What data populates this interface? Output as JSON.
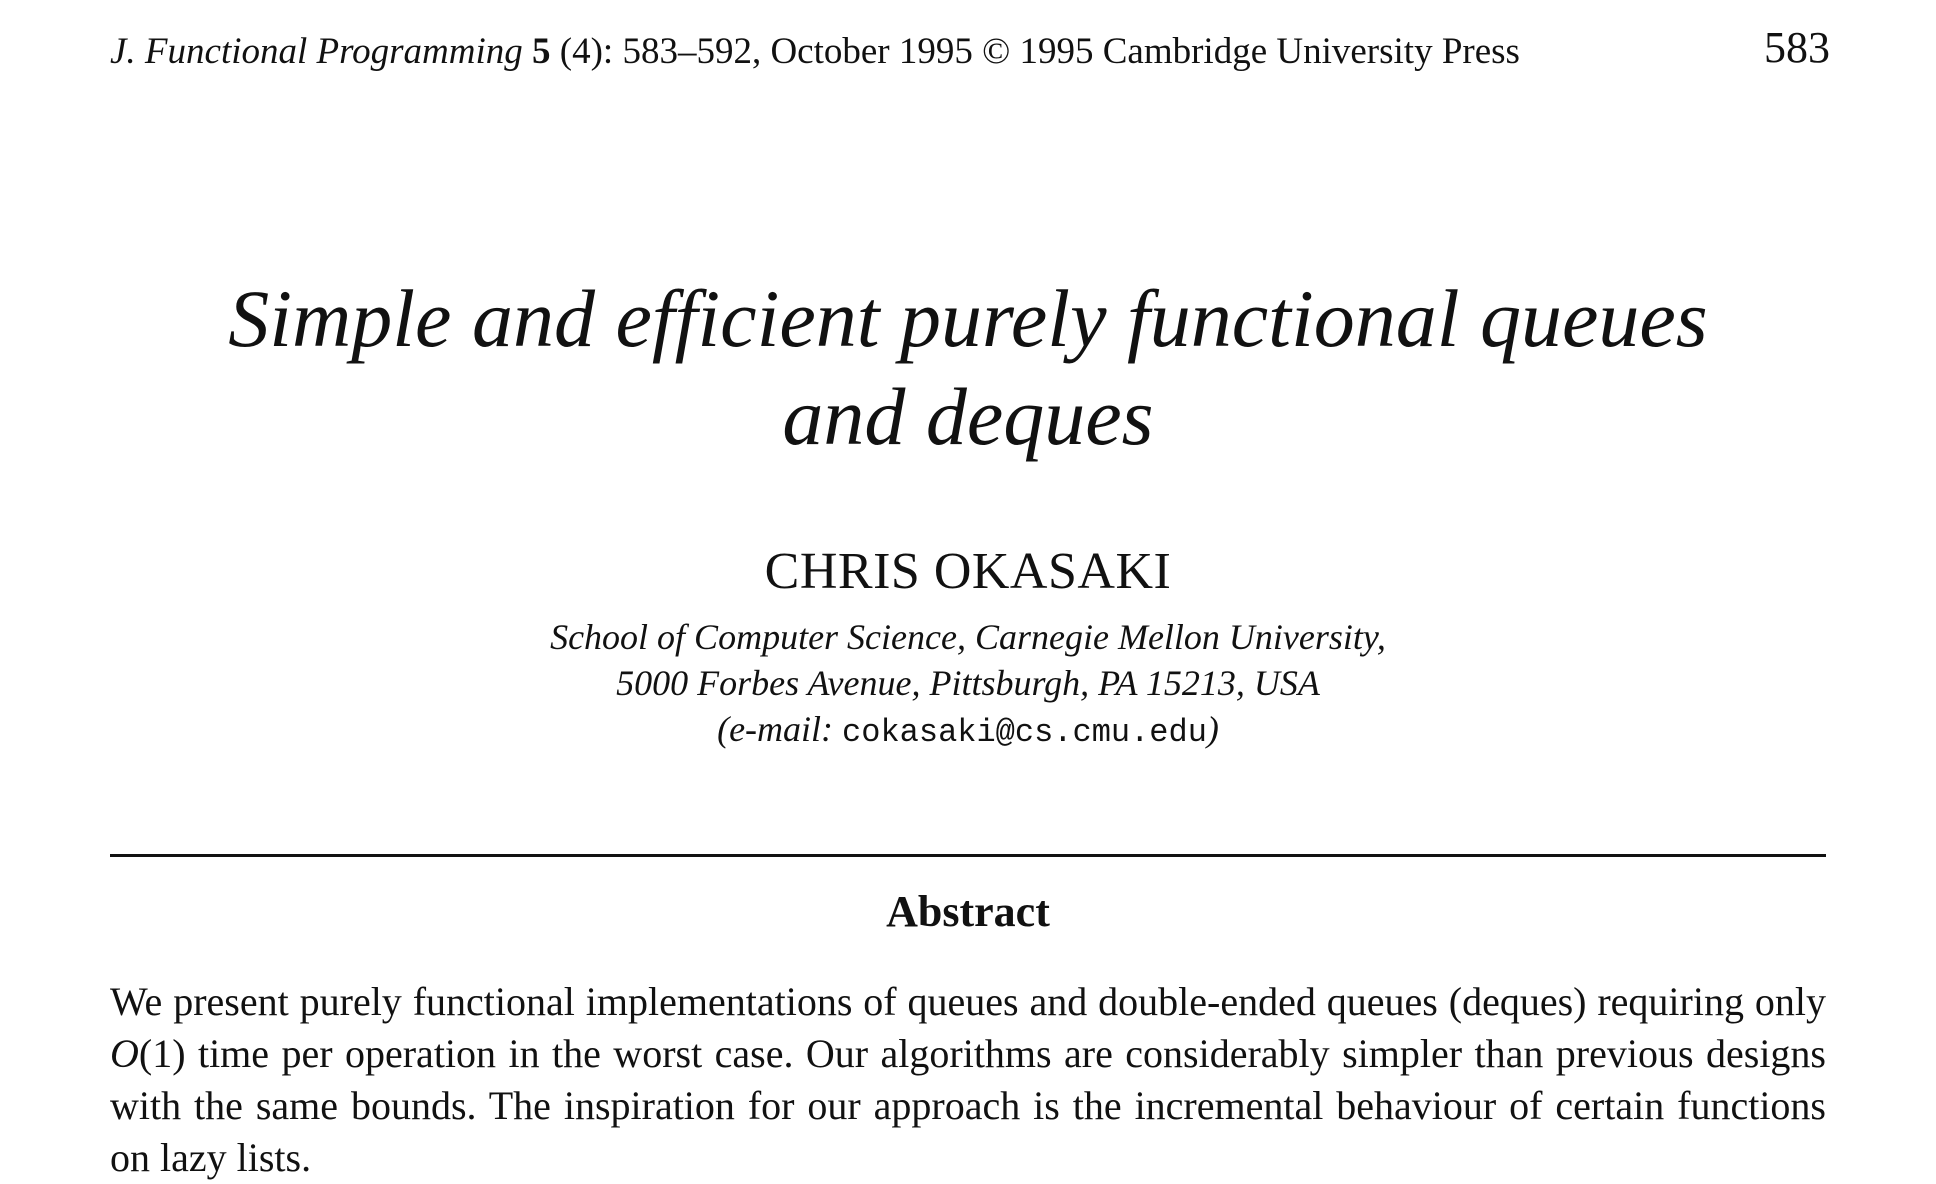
{
  "running_head": {
    "journal": "J. Functional Programming",
    "volume": "5",
    "issue_pages_date": " (4): 583–592, October 1995 © 1995 Cambridge University Press",
    "page_number": "583"
  },
  "title": {
    "line1": "Simple and efficient purely functional queues",
    "line2": "and deques"
  },
  "author": {
    "name": "CHRIS OKASAKI",
    "affiliation_line1": "School of Computer Science, Carnegie Mellon University,",
    "affiliation_line2": "5000 Forbes Avenue, Pittsburgh, PA 15213, USA",
    "email_open": "(e-mail: ",
    "email": "cokasaki@cs.cmu.edu",
    "email_close": ")"
  },
  "abstract": {
    "heading": "Abstract",
    "text_before_o": "We present purely functional implementations of queues and double-ended queues (deques) requiring only ",
    "o_symbol": "O",
    "o_arg": "(1)",
    "text_after_o": " time per operation in the worst case. Our algorithms are considerably simpler than previous designs with the same bounds. The inspiration for our approach is the incremental behaviour of certain functions on lazy lists."
  }
}
